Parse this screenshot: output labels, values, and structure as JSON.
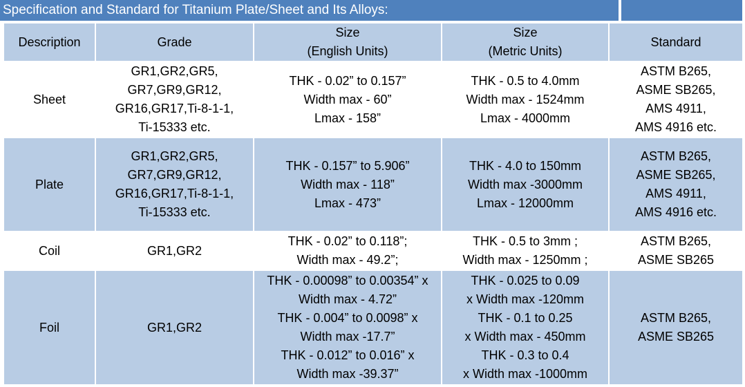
{
  "title": "Specification and Standard for Titanium Plate/Sheet and Its Alloys:",
  "colors": {
    "title_bg": "#4f81bd",
    "band_blue": "#b8cce4",
    "band_white": "#ffffff"
  },
  "headers": {
    "description": "Description",
    "grade": "Grade",
    "size_english": [
      "Size",
      "(English Units)"
    ],
    "size_metric": [
      "Size",
      "(Metric Units)"
    ],
    "standard": "Standard"
  },
  "rows": [
    {
      "description": "Sheet",
      "grade": [
        "GR1,GR2,GR5,",
        "GR7,GR9,GR12,",
        "GR16,GR17,Ti-8-1-1,",
        "Ti-15333 etc."
      ],
      "english": [
        "THK - 0.02” to 0.157”",
        "Width max - 60”",
        "Lmax - 158”"
      ],
      "metric": [
        "THK - 0.5 to 4.0mm",
        "Width max - 1524mm",
        "Lmax - 4000mm"
      ],
      "standard": [
        "ASTM B265,",
        "ASME SB265,",
        "AMS 4911,",
        "AMS 4916 etc."
      ]
    },
    {
      "description": "Plate",
      "grade": [
        "GR1,GR2,GR5,",
        "GR7,GR9,GR12,",
        "GR16,GR17,Ti-8-1-1,",
        "Ti-15333 etc."
      ],
      "english": [
        "THK - 0.157” to 5.906”",
        "Width max - 118”",
        "Lmax - 473”"
      ],
      "metric": [
        "THK - 4.0 to 150mm",
        "Width max -3000mm",
        "Lmax - 12000mm"
      ],
      "standard": [
        "ASTM B265,",
        "ASME SB265,",
        "AMS 4911,",
        "AMS 4916 etc."
      ]
    },
    {
      "description": "Coil",
      "grade": [
        "GR1,GR2"
      ],
      "english": [
        "THK - 0.02” to 0.118”;",
        "Width max - 49.2”;"
      ],
      "metric": [
        "THK - 0.5 to 3mm ;",
        "Width max - 1250mm ;"
      ],
      "standard": [
        "ASTM B265,",
        "ASME SB265"
      ]
    },
    {
      "description": "Foil",
      "grade": [
        "GR1,GR2"
      ],
      "english": [
        "THK - 0.00098” to 0.00354” x",
        "Width max - 4.72”",
        "THK - 0.004” to 0.0098” x",
        "Width max -17.7”",
        "THK - 0.012” to 0.016” x",
        "Width max -39.37”"
      ],
      "metric": [
        "THK - 0.025 to 0.09",
        "x Width max -120mm",
        "THK - 0.1 to 0.25",
        "x Width max - 450mm",
        "THK - 0.3 to 0.4",
        "x Width max -1000mm"
      ],
      "standard": [
        "ASTM B265,",
        "ASME SB265"
      ]
    }
  ]
}
